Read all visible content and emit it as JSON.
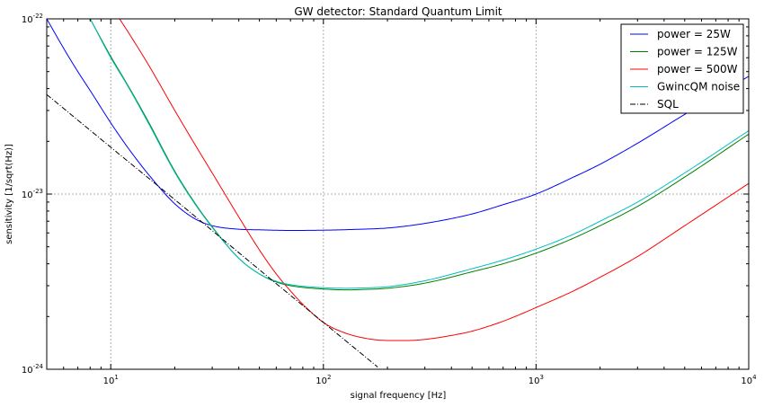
{
  "chart_data": {
    "type": "line",
    "title": "GW detector: Standard Quantum Limit",
    "xlabel": "signal frequency [Hz]",
    "ylabel": "sensitivity [1/sqrt(Hz)]",
    "xscale": "log",
    "yscale": "log",
    "xlim": [
      5,
      10000
    ],
    "ylim": [
      1e-24,
      1e-22
    ],
    "x_ticks": [
      {
        "value": 10,
        "base": "10",
        "exp": "1"
      },
      {
        "value": 100,
        "base": "10",
        "exp": "2"
      },
      {
        "value": 1000,
        "base": "10",
        "exp": "3"
      },
      {
        "value": 10000,
        "base": "10",
        "exp": "4"
      }
    ],
    "y_ticks": [
      {
        "value": 1e-24,
        "base": "10",
        "exp": "-24"
      },
      {
        "value": 1e-23,
        "base": "10",
        "exp": "-23"
      },
      {
        "value": 1e-22,
        "base": "10",
        "exp": "-22"
      }
    ],
    "grid": true,
    "legend_position": "top-right",
    "series": [
      {
        "name": "power = 25W",
        "color": "#0000ff",
        "dash": "solid",
        "x": [
          5,
          6,
          7,
          8,
          10,
          12,
          15,
          20,
          25,
          30,
          40,
          50,
          70,
          100,
          150,
          200,
          300,
          500,
          700,
          1000,
          1500,
          2000,
          3000,
          5000,
          10000
        ],
        "y": [
          1e-22,
          6.8e-23,
          5e-23,
          3.9e-23,
          2.55e-23,
          1.85e-23,
          1.3e-23,
          8.8e-24,
          7.2e-24,
          6.6e-24,
          6.3e-24,
          6.25e-24,
          6.2e-24,
          6.22e-24,
          6.3e-24,
          6.4e-24,
          6.8e-24,
          7.7e-24,
          8.7e-24,
          1e-23,
          1.25e-23,
          1.48e-23,
          1.95e-23,
          2.85e-23,
          4.7e-23
        ]
      },
      {
        "name": "power = 125W",
        "color": "#008000",
        "dash": "solid",
        "x": [
          8,
          10,
          12,
          15,
          20,
          25,
          30,
          40,
          50,
          60,
          70,
          100,
          130,
          150,
          200,
          300,
          500,
          700,
          1000,
          1500,
          2000,
          3000,
          5000,
          10000
        ],
        "y": [
          1e-22,
          6.1e-23,
          4.2e-23,
          2.6e-23,
          1.35e-23,
          8.8e-24,
          6.5e-24,
          4.3e-24,
          3.5e-24,
          3.15e-24,
          3e-24,
          2.87e-24,
          2.84e-24,
          2.85e-24,
          2.9e-24,
          3.1e-24,
          3.6e-24,
          4e-24,
          4.6e-24,
          5.6e-24,
          6.6e-24,
          8.5e-24,
          1.25e-23,
          2.2e-23
        ]
      },
      {
        "name": "power = 500W",
        "color": "#ff0000",
        "dash": "solid",
        "x": [
          11,
          12,
          15,
          20,
          25,
          30,
          40,
          50,
          60,
          70,
          80,
          100,
          120,
          150,
          200,
          250,
          300,
          400,
          500,
          700,
          1000,
          1500,
          2000,
          3000,
          5000,
          10000
        ],
        "y": [
          1e-22,
          8.5e-23,
          5.5e-23,
          3e-23,
          1.9e-23,
          1.32e-23,
          7.4e-24,
          4.8e-24,
          3.5e-24,
          2.8e-24,
          2.35e-24,
          1.85e-24,
          1.65e-24,
          1.52e-24,
          1.46e-24,
          1.46e-24,
          1.48e-24,
          1.56e-24,
          1.65e-24,
          1.88e-24,
          2.25e-24,
          2.8e-24,
          3.35e-24,
          4.4e-24,
          6.6e-24,
          1.15e-23
        ]
      },
      {
        "name": "GwincQM noise",
        "color": "#00bfbf",
        "dash": "solid",
        "x": [
          8,
          10,
          12,
          15,
          20,
          25,
          30,
          40,
          50,
          60,
          70,
          100,
          130,
          150,
          200,
          300,
          500,
          700,
          1000,
          1500,
          2000,
          3000,
          5000,
          10000
        ],
        "y": [
          1e-22,
          6e-23,
          4.15e-23,
          2.55e-23,
          1.33e-23,
          8.7e-24,
          6.45e-24,
          4.3e-24,
          3.5e-24,
          3.18e-24,
          3.04e-24,
          2.92e-24,
          2.9e-24,
          2.91e-24,
          2.96e-24,
          3.2e-24,
          3.75e-24,
          4.2e-24,
          4.85e-24,
          5.9e-24,
          7e-24,
          9e-24,
          1.32e-23,
          2.3e-23
        ]
      },
      {
        "name": "SQL",
        "color": "#000000",
        "dash": "dashdot",
        "x": [
          5,
          10,
          20,
          50,
          100,
          180
        ],
        "y": [
          3.7e-23,
          1.85e-23,
          9.3e-24,
          3.7e-24,
          1.85e-24,
          1.03e-24
        ]
      }
    ]
  }
}
